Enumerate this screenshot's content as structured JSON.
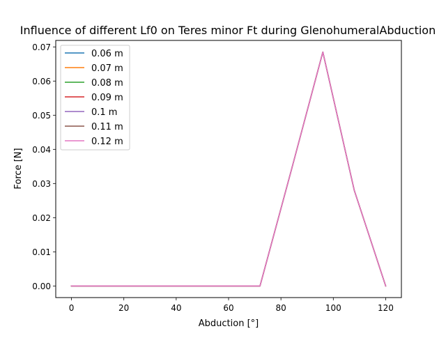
{
  "chart_data": {
    "type": "line",
    "title": "Influence of different Lf0 on Teres minor Ft during GlenohumeralAbduction",
    "xlabel": "Abduction [°]",
    "ylabel": "Force [N]",
    "xlim": [
      -6,
      126
    ],
    "ylim": [
      -0.0034,
      0.0719
    ],
    "xticks": [
      0,
      20,
      40,
      60,
      80,
      100,
      120
    ],
    "xtick_labels": [
      "0",
      "20",
      "40",
      "60",
      "80",
      "100",
      "120"
    ],
    "yticks": [
      0.0,
      0.01,
      0.02,
      0.03,
      0.04,
      0.05,
      0.06,
      0.07
    ],
    "ytick_labels": [
      "0.00",
      "0.01",
      "0.02",
      "0.03",
      "0.04",
      "0.05",
      "0.06",
      "0.07"
    ],
    "grid": false,
    "legend_position": "top-left",
    "x": [
      0,
      12,
      24,
      36,
      48,
      60,
      72,
      84,
      96,
      108,
      120
    ],
    "series": [
      {
        "name": "0.06 m",
        "color": "#1f77b4",
        "values": [
          0,
          0,
          0,
          0,
          0,
          0,
          0,
          0.034,
          0.0685,
          0.028,
          0
        ]
      },
      {
        "name": "0.07 m",
        "color": "#ff7f0e",
        "values": [
          0,
          0,
          0,
          0,
          0,
          0,
          0,
          0.034,
          0.0685,
          0.028,
          0
        ]
      },
      {
        "name": "0.08 m",
        "color": "#2ca02c",
        "values": [
          0,
          0,
          0,
          0,
          0,
          0,
          0,
          0.034,
          0.0685,
          0.028,
          0
        ]
      },
      {
        "name": "0.09 m",
        "color": "#d62728",
        "values": [
          0,
          0,
          0,
          0,
          0,
          0,
          0,
          0.034,
          0.0685,
          0.028,
          0
        ]
      },
      {
        "name": "0.1 m",
        "color": "#9467bd",
        "values": [
          0,
          0,
          0,
          0,
          0,
          0,
          0,
          0.034,
          0.0685,
          0.028,
          0
        ]
      },
      {
        "name": "0.11 m",
        "color": "#8c564b",
        "values": [
          0,
          0,
          0,
          0,
          0,
          0,
          0,
          0.034,
          0.0685,
          0.028,
          0
        ]
      },
      {
        "name": "0.12 m",
        "color": "#e377c2",
        "values": [
          0,
          0,
          0,
          0,
          0,
          0,
          0,
          0.034,
          0.0685,
          0.028,
          0
        ]
      }
    ]
  }
}
